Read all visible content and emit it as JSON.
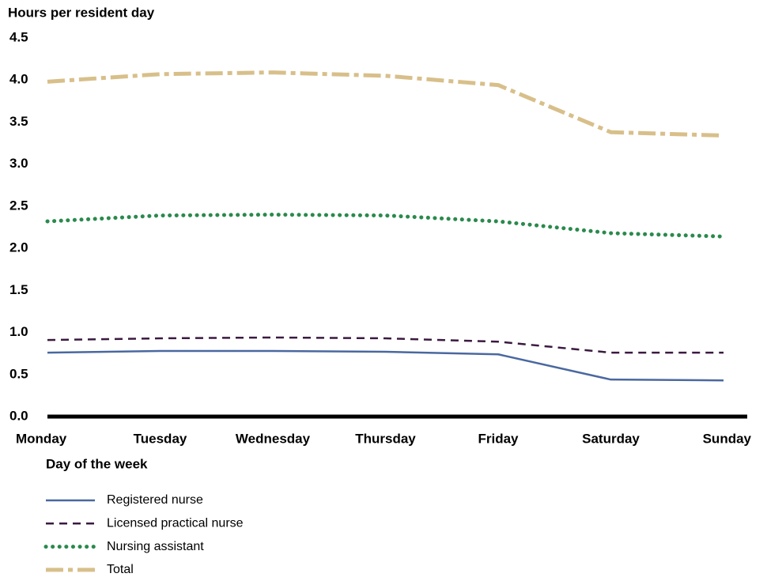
{
  "chart_data": {
    "type": "line",
    "y_label": "Hours per resident day",
    "x_label": "Day of the week",
    "categories": [
      "Monday",
      "Tuesday",
      "Wednesday",
      "Thursday",
      "Friday",
      "Saturday",
      "Sunday"
    ],
    "series": [
      {
        "name": "Registered nurse",
        "color": "#4a68a0",
        "style": "solid",
        "values": [
          0.76,
          0.78,
          0.78,
          0.77,
          0.74,
          0.44,
          0.43
        ]
      },
      {
        "name": "Licensed practical nurse",
        "color": "#3b1a40",
        "style": "dashed",
        "values": [
          0.91,
          0.93,
          0.94,
          0.93,
          0.89,
          0.76,
          0.76
        ]
      },
      {
        "name": "Nursing assistant",
        "color": "#2a8a4c",
        "style": "dotted",
        "values": [
          2.32,
          2.39,
          2.4,
          2.39,
          2.32,
          2.18,
          2.14
        ]
      },
      {
        "name": "Total",
        "color": "#d8bf8a",
        "style": "dashdot",
        "values": [
          3.98,
          4.07,
          4.09,
          4.05,
          3.94,
          3.38,
          3.34
        ]
      }
    ],
    "ylim": [
      0,
      4.5
    ],
    "yticks": [
      {
        "value": 0,
        "label": "0.0"
      },
      0.5,
      {
        "value": 1,
        "label": "1.0"
      },
      1.5,
      {
        "value": 2,
        "label": "2.0"
      },
      2.5,
      {
        "value": 3,
        "label": "3.0"
      },
      3.5,
      {
        "value": 4,
        "label": "4.0"
      },
      4.5
    ],
    "grid": false
  }
}
